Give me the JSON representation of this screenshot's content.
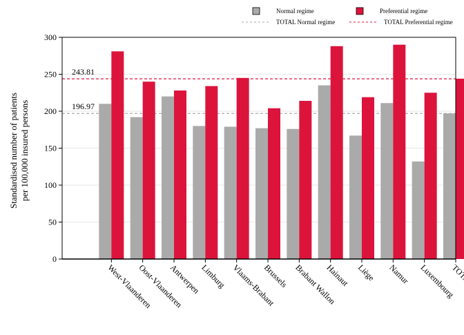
{
  "chart_data": {
    "type": "bar",
    "title": "",
    "xlabel": "",
    "ylabel_lines": [
      "Standardised number of patients",
      "per 100,000 insured persons"
    ],
    "ylim": [
      0,
      300
    ],
    "yticks": [
      0,
      50,
      100,
      150,
      200,
      250,
      300
    ],
    "grid": true,
    "legend_position": "top",
    "categories": [
      "West-Vlaanderen",
      "Oost-Vlaanderen",
      "Antwerpen",
      "Limburg",
      "Vlaams-Brabant",
      "Brussels",
      "Brabant Wallon",
      "Hainaut",
      "Liège",
      "Namur",
      "Luxembourg",
      "TOTAL"
    ],
    "series": [
      {
        "name": "Normal regime",
        "color": "#aaaaaa",
        "values": [
          210,
          192,
          220,
          180,
          179,
          177,
          176,
          235,
          167,
          211,
          132,
          197
        ]
      },
      {
        "name": "Preferential regime",
        "color": "#dc143c",
        "values": [
          281,
          240,
          228,
          234,
          245,
          204,
          214,
          288,
          219,
          290,
          225,
          244
        ]
      }
    ],
    "reference_lines": [
      {
        "name": "TOTAL Normal regime",
        "value": 196.97,
        "label": "196.97",
        "color": "#aaaaaa"
      },
      {
        "name": "TOTAL Preferential regime",
        "value": 243.81,
        "label": "243.81",
        "color": "#dc143c"
      }
    ]
  }
}
